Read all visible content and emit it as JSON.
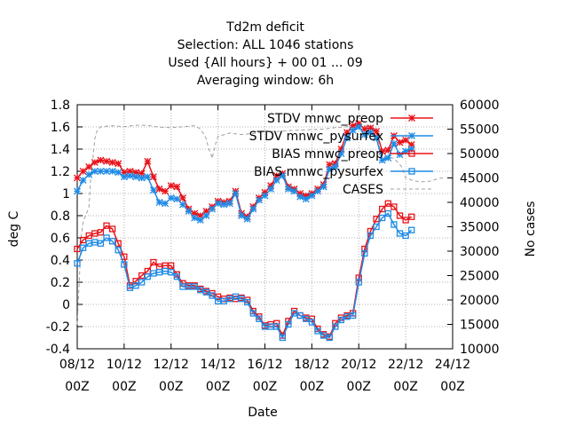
{
  "chart_data": {
    "type": "line",
    "title_lines": [
      "Td2m deficit",
      "Selection: ALL    1046 stations",
      "Used {All hours} + 00 01 ... 09",
      "Averaging window:  6h"
    ],
    "xlabel": "Date",
    "ylabel": "deg C",
    "y2label": "No cases",
    "x_ticks": [
      {
        "day": 8,
        "line1": "08/12",
        "line2": "00Z"
      },
      {
        "day": 10,
        "line1": "10/12",
        "line2": "00Z"
      },
      {
        "day": 12,
        "line1": "12/12",
        "line2": "00Z"
      },
      {
        "day": 14,
        "line1": "14/12",
        "line2": "00Z"
      },
      {
        "day": 16,
        "line1": "16/12",
        "line2": "00Z"
      },
      {
        "day": 18,
        "line1": "18/12",
        "line2": "00Z"
      },
      {
        "day": 20,
        "line1": "20/12",
        "line2": "00Z"
      },
      {
        "day": 22,
        "line1": "22/12",
        "line2": "00Z"
      },
      {
        "day": 24,
        "line1": "24/12",
        "line2": "00Z"
      }
    ],
    "xlim_days": [
      8,
      24
    ],
    "ylim": [
      -0.4,
      1.8
    ],
    "y_ticks": [
      -0.4,
      -0.2,
      0,
      0.2,
      0.4,
      0.6,
      0.8,
      1,
      1.2,
      1.4,
      1.6,
      1.8
    ],
    "y_tick_labels": [
      "-0.4",
      "-0.2",
      "0",
      "0.2",
      "0.4",
      "0.6",
      "0.8",
      "1",
      "1.2",
      "1.4",
      "1.6",
      "1.8"
    ],
    "y2lim": [
      10000,
      60000
    ],
    "y2_ticks": [
      10000,
      15000,
      20000,
      25000,
      30000,
      35000,
      40000,
      45000,
      50000,
      55000,
      60000
    ],
    "y2_tick_labels": [
      "10000",
      "15000",
      "20000",
      "25000",
      "30000",
      "35000",
      "40000",
      "45000",
      "50000",
      "55000",
      "60000"
    ],
    "legend_position": "top-right",
    "series": [
      {
        "name": "STDV mnwc_preop",
        "color": "#e8131a",
        "marker": "x-star",
        "axis": "left",
        "x": [
          8.0,
          8.25,
          8.5,
          8.75,
          9.0,
          9.25,
          9.5,
          9.75,
          10.0,
          10.25,
          10.5,
          10.75,
          11.0,
          11.25,
          11.5,
          11.75,
          12.0,
          12.25,
          12.5,
          12.75,
          13.0,
          13.25,
          13.5,
          13.75,
          14.0,
          14.25,
          14.5,
          14.75,
          15.0,
          15.25,
          15.5,
          15.75,
          16.0,
          16.25,
          16.5,
          16.75,
          17.0,
          17.25,
          17.5,
          17.75,
          18.0,
          18.25,
          18.5,
          18.75,
          19.0,
          19.25,
          19.5,
          19.75,
          20.0,
          20.25,
          20.5,
          20.75,
          21.0,
          21.25,
          21.5,
          21.75,
          22.0,
          22.25
        ],
        "y": [
          1.14,
          1.2,
          1.24,
          1.28,
          1.3,
          1.29,
          1.28,
          1.27,
          1.19,
          1.2,
          1.19,
          1.18,
          1.29,
          1.15,
          1.04,
          1.02,
          1.07,
          1.06,
          0.96,
          0.86,
          0.82,
          0.8,
          0.84,
          0.88,
          0.93,
          0.92,
          0.93,
          1.02,
          0.82,
          0.79,
          0.88,
          0.96,
          1.01,
          1.07,
          1.16,
          1.18,
          1.06,
          1.04,
          1.0,
          0.98,
          1.0,
          1.04,
          1.08,
          1.26,
          1.27,
          1.4,
          1.55,
          1.61,
          1.63,
          1.58,
          1.59,
          1.56,
          1.38,
          1.39,
          1.52,
          1.46,
          1.48,
          1.44
        ]
      },
      {
        "name": "STDV mnwc_pysurfex",
        "color": "#1e8be6",
        "marker": "star",
        "axis": "left",
        "x": [
          8.0,
          8.25,
          8.5,
          8.75,
          9.0,
          9.25,
          9.5,
          9.75,
          10.0,
          10.25,
          10.5,
          10.75,
          11.0,
          11.25,
          11.5,
          11.75,
          12.0,
          12.25,
          12.5,
          12.75,
          13.0,
          13.25,
          13.5,
          13.75,
          14.0,
          14.25,
          14.5,
          14.75,
          15.0,
          15.25,
          15.5,
          15.75,
          16.0,
          16.25,
          16.5,
          16.75,
          17.0,
          17.25,
          17.5,
          17.75,
          18.0,
          18.25,
          18.5,
          18.75,
          19.0,
          19.25,
          19.5,
          19.75,
          20.0,
          20.25,
          20.5,
          20.75,
          21.0,
          21.25,
          21.5,
          21.75,
          22.0,
          22.25
        ],
        "y": [
          1.02,
          1.12,
          1.17,
          1.2,
          1.2,
          1.2,
          1.2,
          1.19,
          1.15,
          1.16,
          1.15,
          1.14,
          1.15,
          1.03,
          0.92,
          0.91,
          0.96,
          0.95,
          0.9,
          0.84,
          0.78,
          0.76,
          0.8,
          0.86,
          0.91,
          0.9,
          0.91,
          1.0,
          0.8,
          0.77,
          0.86,
          0.94,
          0.98,
          1.04,
          1.12,
          1.16,
          1.04,
          1.02,
          0.97,
          0.95,
          0.98,
          1.02,
          1.06,
          1.22,
          1.24,
          1.36,
          1.5,
          1.57,
          1.6,
          1.53,
          1.55,
          1.5,
          1.3,
          1.32,
          1.45,
          1.35,
          1.38,
          1.4
        ]
      },
      {
        "name": "BIAS mnwc_preop",
        "color": "#e8131a",
        "marker": "square",
        "axis": "left",
        "x": [
          8.0,
          8.25,
          8.5,
          8.75,
          9.0,
          9.25,
          9.5,
          9.75,
          10.0,
          10.25,
          10.5,
          10.75,
          11.0,
          11.25,
          11.5,
          11.75,
          12.0,
          12.25,
          12.5,
          12.75,
          13.0,
          13.25,
          13.5,
          13.75,
          14.0,
          14.25,
          14.5,
          14.75,
          15.0,
          15.25,
          15.5,
          15.75,
          16.0,
          16.25,
          16.5,
          16.75,
          17.0,
          17.25,
          17.5,
          17.75,
          18.0,
          18.25,
          18.5,
          18.75,
          19.0,
          19.25,
          19.5,
          19.75,
          20.0,
          20.25,
          20.5,
          20.75,
          21.0,
          21.25,
          21.5,
          21.75,
          22.0,
          22.25
        ],
        "y": [
          0.5,
          0.58,
          0.62,
          0.64,
          0.65,
          0.71,
          0.68,
          0.55,
          0.43,
          0.17,
          0.21,
          0.26,
          0.3,
          0.38,
          0.34,
          0.35,
          0.35,
          0.27,
          0.19,
          0.17,
          0.17,
          0.14,
          0.12,
          0.1,
          0.07,
          0.05,
          0.06,
          0.05,
          0.06,
          0.04,
          -0.06,
          -0.11,
          -0.19,
          -0.18,
          -0.17,
          -0.28,
          -0.15,
          -0.06,
          -0.1,
          -0.12,
          -0.13,
          -0.22,
          -0.27,
          -0.29,
          -0.17,
          -0.12,
          -0.1,
          -0.08,
          0.24,
          0.5,
          0.66,
          0.77,
          0.86,
          0.91,
          0.88,
          0.8,
          0.76,
          0.79
        ]
      },
      {
        "name": "BIAS mnwc_pysurfex",
        "color": "#1e8be6",
        "marker": "square",
        "axis": "left",
        "x": [
          8.0,
          8.25,
          8.5,
          8.75,
          9.0,
          9.25,
          9.5,
          9.75,
          10.0,
          10.25,
          10.5,
          10.75,
          11.0,
          11.25,
          11.5,
          11.75,
          12.0,
          12.25,
          12.5,
          12.75,
          13.0,
          13.25,
          13.5,
          13.75,
          14.0,
          14.25,
          14.5,
          14.75,
          15.0,
          15.25,
          15.5,
          15.75,
          16.0,
          16.25,
          16.5,
          16.75,
          17.0,
          17.25,
          17.5,
          17.75,
          18.0,
          18.25,
          18.5,
          18.75,
          19.0,
          19.25,
          19.5,
          19.75,
          20.0,
          20.25,
          20.5,
          20.75,
          21.0,
          21.25,
          21.5,
          21.75,
          22.0,
          22.25
        ],
        "y": [
          0.37,
          0.51,
          0.55,
          0.56,
          0.55,
          0.6,
          0.57,
          0.49,
          0.36,
          0.15,
          0.17,
          0.2,
          0.25,
          0.28,
          0.29,
          0.3,
          0.29,
          0.25,
          0.16,
          0.16,
          0.16,
          0.13,
          0.11,
          0.08,
          0.03,
          0.03,
          0.05,
          0.07,
          0.05,
          0.02,
          -0.08,
          -0.13,
          -0.2,
          -0.2,
          -0.2,
          -0.3,
          -0.18,
          -0.08,
          -0.1,
          -0.13,
          -0.16,
          -0.24,
          -0.28,
          -0.3,
          -0.2,
          -0.14,
          -0.11,
          -0.1,
          0.2,
          0.46,
          0.62,
          0.7,
          0.78,
          0.82,
          0.72,
          0.64,
          0.62,
          0.67
        ]
      },
      {
        "name": "CASES",
        "color": "#a0a0a0",
        "marker": "none",
        "dashed": true,
        "axis": "right",
        "x": [
          8.0,
          8.08,
          8.17,
          8.25,
          8.33,
          8.42,
          8.5,
          8.58,
          8.67,
          8.75,
          8.83,
          8.92,
          9.0,
          9.5,
          10.0,
          10.5,
          11.0,
          11.5,
          12.0,
          12.5,
          13.0,
          13.2,
          13.4,
          13.5,
          13.6,
          13.7,
          13.75,
          13.8,
          13.9,
          14.0,
          14.5,
          15.0,
          15.5,
          15.9,
          16.0,
          16.5,
          17.0,
          17.5,
          18.0,
          18.5,
          19.0,
          19.5,
          20.0,
          20.5,
          20.7,
          20.8,
          20.9,
          21.0,
          21.5,
          21.8,
          21.9,
          22.0,
          22.3,
          22.6,
          23.0,
          23.5,
          23.7
        ],
        "y": [
          15000,
          23000,
          33000,
          36000,
          37000,
          38000,
          39000,
          45000,
          49000,
          53000,
          54500,
          55000,
          55500,
          55700,
          55500,
          55800,
          55800,
          55400,
          55300,
          55500,
          55700,
          55200,
          54000,
          53000,
          51000,
          50000,
          49000,
          50000,
          52000,
          53500,
          54200,
          53900,
          54100,
          54400,
          54600,
          54500,
          54700,
          54800,
          54900,
          55000,
          55300,
          55500,
          55600,
          55700,
          55300,
          54000,
          50500,
          49500,
          49000,
          47500,
          46500,
          45000,
          44500,
          44200,
          44300,
          45000,
          44800
        ]
      }
    ]
  }
}
